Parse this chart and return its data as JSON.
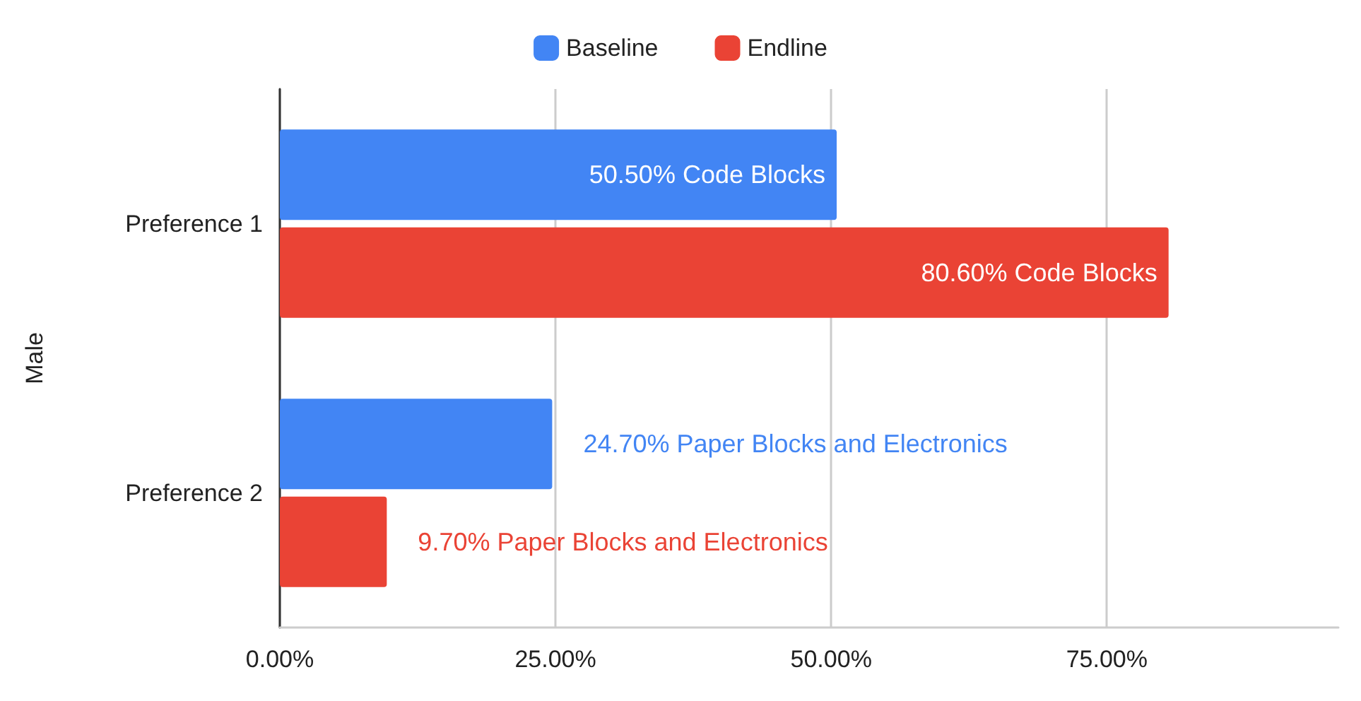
{
  "chart_data": {
    "type": "bar",
    "orientation": "horizontal",
    "ylabel": "Male",
    "categories": [
      "Preference 1",
      "Preference 2"
    ],
    "series": [
      {
        "name": "Baseline",
        "color": "#4285f4",
        "values": [
          50.5,
          24.7
        ],
        "value_labels": [
          "50.50% Code Blocks",
          "24.70% Paper Blocks and Electronics"
        ]
      },
      {
        "name": "Endline",
        "color": "#ea4335",
        "values": [
          80.6,
          9.7
        ],
        "value_labels": [
          "80.60% Code Blocks",
          "9.70% Paper Blocks and Electronics"
        ]
      }
    ],
    "xticks": [
      {
        "value": 0,
        "label": "0.00%"
      },
      {
        "value": 25,
        "label": "25.00%"
      },
      {
        "value": 50,
        "label": "50.00%"
      },
      {
        "value": 75,
        "label": "75.00%"
      }
    ],
    "xlim": [
      0,
      96
    ],
    "grid": "x",
    "legend": "top"
  }
}
